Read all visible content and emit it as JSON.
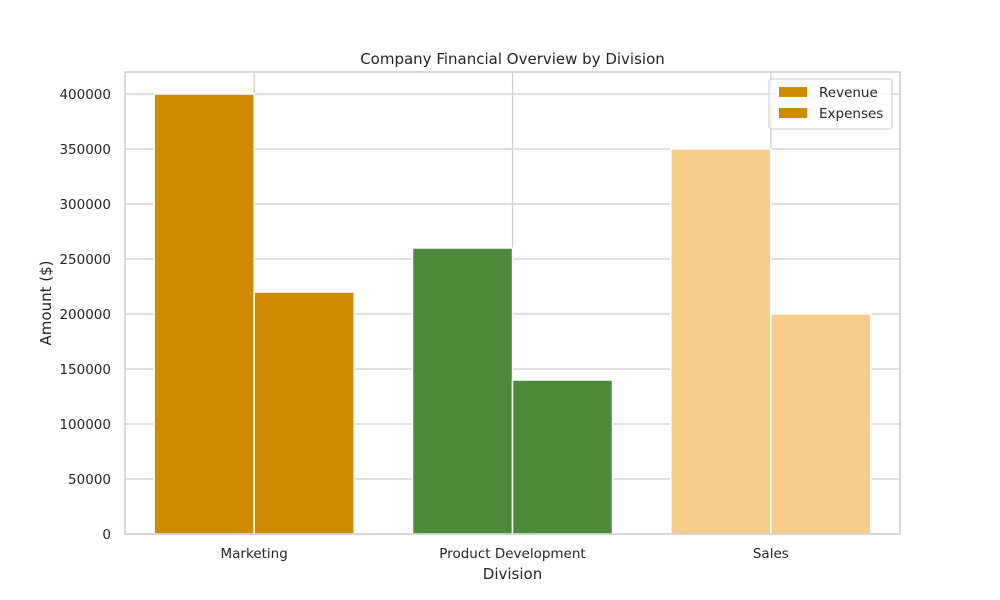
{
  "chart_data": {
    "type": "bar",
    "title": "Company Financial Overview by Division",
    "xlabel": "Division",
    "ylabel": "Amount ($)",
    "categories": [
      "Marketing",
      "Product Development",
      "Sales"
    ],
    "series": [
      {
        "name": "Revenue",
        "values": [
          400000,
          260000,
          350000
        ]
      },
      {
        "name": "Expenses",
        "values": [
          220000,
          140000,
          200000
        ]
      }
    ],
    "bar_colors": [
      "#d08a00",
      "#4a8a38",
      "#f7cb88"
    ],
    "legend_swatch_color": "#d08a00",
    "ylim": [
      0,
      420000
    ],
    "yticks": [
      0,
      50000,
      100000,
      150000,
      200000,
      250000,
      300000,
      350000,
      400000
    ],
    "ytick_labels": [
      "0",
      "50000",
      "100000",
      "150000",
      "200000",
      "250000",
      "300000",
      "350000",
      "400000"
    ],
    "grid": true,
    "legend_position": "top-right"
  }
}
